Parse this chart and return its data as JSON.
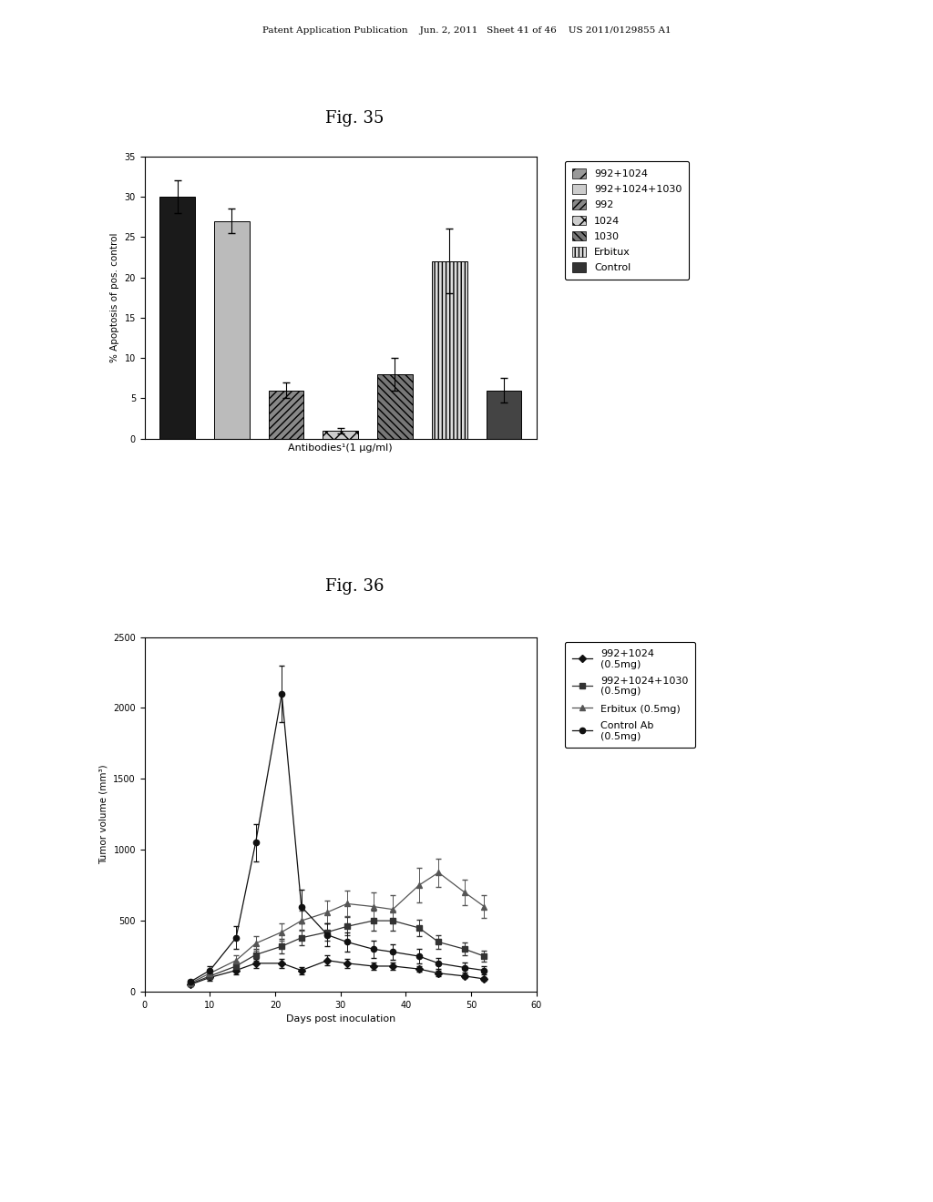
{
  "page_header": "Patent Application Publication    Jun. 2, 2011   Sheet 41 of 46    US 2011/0129855 A1",
  "background_color": "#ffffff",
  "fig35": {
    "title": "Fig. 35",
    "xlabel": "Antibodies¹(1 μg/ml)",
    "ylabel": "% Apoptosis of pos. control",
    "ylim": [
      0,
      35
    ],
    "yticks": [
      0,
      5,
      10,
      15,
      20,
      25,
      30,
      35
    ],
    "values": [
      30,
      27,
      6,
      1,
      8,
      22,
      6
    ],
    "errors": [
      2,
      1.5,
      1,
      0.3,
      2,
      4,
      1.5
    ],
    "bar_configs": [
      {
        "fc": "#1a1a1a",
        "hatch": "",
        "label": "992+1024"
      },
      {
        "fc": "#bbbbbb",
        "hatch": "===",
        "label": "992+1024+1030"
      },
      {
        "fc": "#888888",
        "hatch": "////",
        "label": "992"
      },
      {
        "fc": "#cccccc",
        "hatch": "xx",
        "label": "1024"
      },
      {
        "fc": "#777777",
        "hatch": "\\\\\\\\",
        "label": "1030"
      },
      {
        "fc": "#dddddd",
        "hatch": "||||",
        "label": "Erbitux"
      },
      {
        "fc": "#444444",
        "hatch": "",
        "label": "Control"
      }
    ],
    "legend_configs": [
      {
        "fc": "#999999",
        "hatch": "//",
        "label": "992+1024"
      },
      {
        "fc": "#cccccc",
        "hatch": "===",
        "label": "992+1024+1030"
      },
      {
        "fc": "#888888",
        "hatch": "////",
        "label": "992"
      },
      {
        "fc": "#cccccc",
        "hatch": "xx",
        "label": "1024"
      },
      {
        "fc": "#777777",
        "hatch": "\\\\\\\\",
        "label": "1030"
      },
      {
        "fc": "#dddddd",
        "hatch": "||||",
        "label": "Erbitux"
      },
      {
        "fc": "#333333",
        "hatch": "",
        "label": "Control"
      }
    ]
  },
  "fig36": {
    "title": "Fig. 36",
    "xlabel": "Days post inoculation",
    "ylabel": "Tumor volume (mm³)",
    "ylim": [
      0,
      2500
    ],
    "xlim": [
      0,
      60
    ],
    "yticks": [
      0,
      500,
      1000,
      1500,
      2000,
      2500
    ],
    "xticks": [
      0,
      10,
      20,
      30,
      40,
      50,
      60
    ],
    "series": [
      {
        "label": "992+1024\n(0.5mg)",
        "marker": "D",
        "color": "#111111",
        "x": [
          7,
          10,
          14,
          17,
          21,
          24,
          28,
          31,
          35,
          38,
          42,
          45,
          49,
          52
        ],
        "y": [
          50,
          100,
          150,
          200,
          200,
          150,
          220,
          200,
          180,
          180,
          160,
          130,
          110,
          90
        ],
        "yerr": [
          10,
          20,
          25,
          30,
          30,
          25,
          35,
          30,
          25,
          25,
          20,
          20,
          15,
          15
        ]
      },
      {
        "label": "992+1024+1030\n(0.5mg)",
        "marker": "s",
        "color": "#333333",
        "x": [
          7,
          10,
          14,
          17,
          21,
          24,
          28,
          31,
          35,
          38,
          42,
          45,
          49,
          52
        ],
        "y": [
          55,
          110,
          180,
          260,
          320,
          380,
          420,
          460,
          500,
          500,
          450,
          350,
          300,
          250
        ],
        "yerr": [
          10,
          20,
          30,
          40,
          50,
          55,
          60,
          65,
          70,
          70,
          60,
          50,
          45,
          40
        ]
      },
      {
        "label": "Erbitux (0.5mg)",
        "marker": "^",
        "color": "#555555",
        "x": [
          7,
          10,
          14,
          17,
          21,
          24,
          28,
          31,
          35,
          38,
          42,
          45,
          49,
          52
        ],
        "y": [
          60,
          130,
          220,
          340,
          420,
          500,
          560,
          620,
          600,
          580,
          750,
          840,
          700,
          600
        ],
        "yerr": [
          15,
          25,
          35,
          50,
          60,
          70,
          80,
          90,
          100,
          100,
          120,
          100,
          90,
          80
        ]
      },
      {
        "label": "Control Ab\n(0.5mg)",
        "marker": "o",
        "color": "#111111",
        "filled": true,
        "x": [
          7,
          10,
          14,
          17,
          21,
          24,
          28,
          31,
          35,
          38,
          42,
          45,
          49,
          52
        ],
        "y": [
          70,
          150,
          380,
          1050,
          2100,
          600,
          400,
          350,
          300,
          280,
          250,
          200,
          170,
          150
        ],
        "yerr": [
          15,
          30,
          80,
          130,
          200,
          120,
          80,
          70,
          60,
          55,
          50,
          40,
          35,
          30
        ]
      }
    ]
  }
}
